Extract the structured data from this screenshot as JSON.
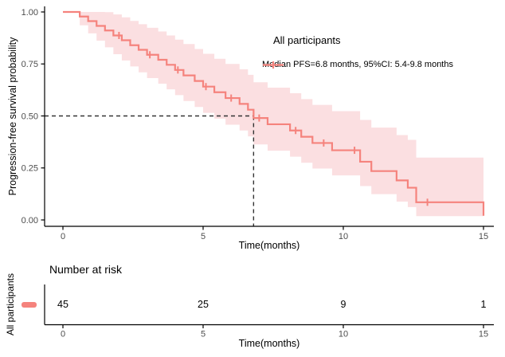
{
  "figure": {
    "y_axis_title": "Progression-free survival probability",
    "x_axis_title": "Time(months)",
    "legend": {
      "title": "All participants",
      "entry": "Median PFS=6.8 months, 95%CI: 5.4-9.8 months"
    },
    "risk_section": {
      "title": "Number at risk",
      "row_label": "All participants",
      "x_axis_title": "Time(months)"
    },
    "colors": {
      "curve": "#f5837d",
      "band": "#fbdfe1",
      "axis": "#000000",
      "tick_text": "#4d4d4d",
      "dashed": "#333333"
    }
  },
  "chart_data": {
    "type": "line",
    "subtype": "kaplan-meier-step",
    "title": "",
    "xlabel": "Time(months)",
    "ylabel": "Progression-free survival probability",
    "xlim": [
      0,
      15.4
    ],
    "ylim": [
      0,
      1
    ],
    "x_tick_values": [
      0,
      5,
      10,
      15
    ],
    "x_tick_labels": [
      "0",
      "5",
      "10",
      "15"
    ],
    "y_tick_values": [
      0,
      0.25,
      0.5,
      0.75,
      1
    ],
    "y_tick_labels": [
      "0.00",
      "0.25",
      "0.50",
      "0.75",
      "1.00"
    ],
    "median_time": 6.8,
    "median_survival": 0.5,
    "series_name": "All participants",
    "median_annotation": "Median PFS=6.8 months, 95%CI: 5.4-9.8 months",
    "steps": [
      {
        "t": 0.0,
        "s": 1.0,
        "lo": 1.0,
        "hi": 1.0
      },
      {
        "t": 0.6,
        "s": 0.978,
        "lo": 0.936,
        "hi": 1.0
      },
      {
        "t": 0.9,
        "s": 0.956,
        "lo": 0.897,
        "hi": 1.0
      },
      {
        "t": 1.2,
        "s": 0.933,
        "lo": 0.862,
        "hi": 1.0
      },
      {
        "t": 1.5,
        "s": 0.911,
        "lo": 0.83,
        "hi": 0.999
      },
      {
        "t": 1.8,
        "s": 0.887,
        "lo": 0.797,
        "hi": 0.988
      },
      {
        "t": 2.1,
        "s": 0.864,
        "lo": 0.767,
        "hi": 0.974
      },
      {
        "t": 2.4,
        "s": 0.84,
        "lo": 0.738,
        "hi": 0.957
      },
      {
        "t": 2.7,
        "s": 0.818,
        "lo": 0.71,
        "hi": 0.941
      },
      {
        "t": 3.0,
        "s": 0.794,
        "lo": 0.682,
        "hi": 0.924
      },
      {
        "t": 3.4,
        "s": 0.77,
        "lo": 0.655,
        "hi": 0.906
      },
      {
        "t": 3.7,
        "s": 0.746,
        "lo": 0.628,
        "hi": 0.887
      },
      {
        "t": 4.0,
        "s": 0.721,
        "lo": 0.6,
        "hi": 0.867
      },
      {
        "t": 4.3,
        "s": 0.695,
        "lo": 0.572,
        "hi": 0.846
      },
      {
        "t": 4.7,
        "s": 0.668,
        "lo": 0.543,
        "hi": 0.822
      },
      {
        "t": 5.0,
        "s": 0.641,
        "lo": 0.515,
        "hi": 0.799
      },
      {
        "t": 5.4,
        "s": 0.614,
        "lo": 0.487,
        "hi": 0.775
      },
      {
        "t": 5.8,
        "s": 0.586,
        "lo": 0.458,
        "hi": 0.75
      },
      {
        "t": 6.3,
        "s": 0.558,
        "lo": 0.43,
        "hi": 0.724
      },
      {
        "t": 6.6,
        "s": 0.53,
        "lo": 0.402,
        "hi": 0.698
      },
      {
        "t": 6.8,
        "s": 0.49,
        "lo": 0.363,
        "hi": 0.662
      },
      {
        "t": 7.3,
        "s": 0.46,
        "lo": 0.333,
        "hi": 0.636
      },
      {
        "t": 8.1,
        "s": 0.43,
        "lo": 0.304,
        "hi": 0.609
      },
      {
        "t": 8.5,
        "s": 0.4,
        "lo": 0.275,
        "hi": 0.581
      },
      {
        "t": 8.9,
        "s": 0.37,
        "lo": 0.247,
        "hi": 0.553
      },
      {
        "t": 9.6,
        "s": 0.335,
        "lo": 0.214,
        "hi": 0.523
      },
      {
        "t": 10.6,
        "s": 0.28,
        "lo": 0.163,
        "hi": 0.481
      },
      {
        "t": 11.0,
        "s": 0.235,
        "lo": 0.124,
        "hi": 0.444
      },
      {
        "t": 11.9,
        "s": 0.19,
        "lo": 0.088,
        "hi": 0.408
      },
      {
        "t": 12.3,
        "s": 0.155,
        "lo": 0.062,
        "hi": 0.385
      },
      {
        "t": 12.6,
        "s": 0.085,
        "lo": 0.018,
        "hi": 0.3
      },
      {
        "t": 15.0,
        "s": 0.02,
        "lo": 0.002,
        "hi": 0.3
      }
    ],
    "censor_marks": [
      {
        "t": 2.0,
        "s": 0.887
      },
      {
        "t": 3.1,
        "s": 0.794
      },
      {
        "t": 4.1,
        "s": 0.721
      },
      {
        "t": 5.1,
        "s": 0.641
      },
      {
        "t": 6.0,
        "s": 0.586
      },
      {
        "t": 7.0,
        "s": 0.49
      },
      {
        "t": 8.3,
        "s": 0.43
      },
      {
        "t": 9.3,
        "s": 0.37
      },
      {
        "t": 10.4,
        "s": 0.335
      },
      {
        "t": 13.0,
        "s": 0.085
      }
    ],
    "risk_table": {
      "title": "Number at risk",
      "row_label": "All participants",
      "times": [
        0,
        5,
        10,
        15
      ],
      "values": [
        "45",
        "25",
        "9",
        "1"
      ]
    }
  }
}
